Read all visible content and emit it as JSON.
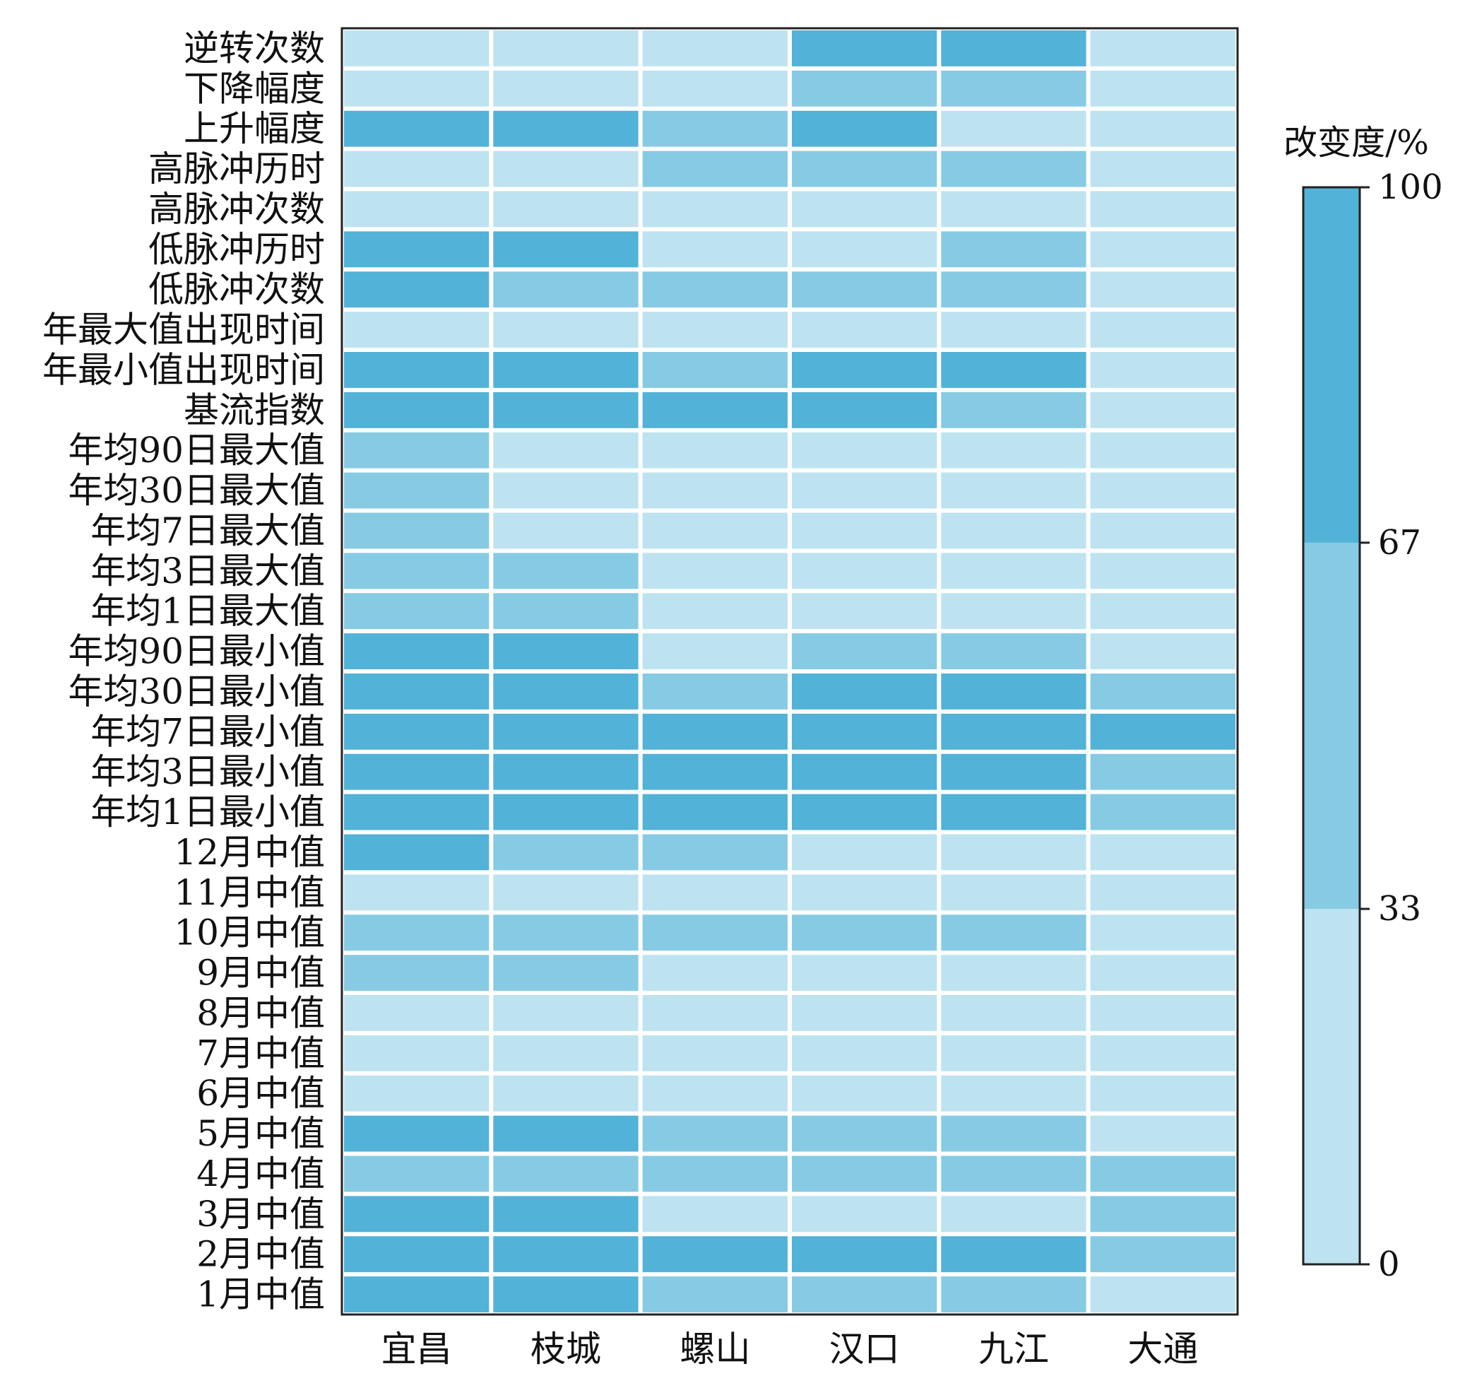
{
  "chart_data": {
    "type": "heatmap",
    "rows": [
      "逆转次数",
      "下降幅度",
      "上升幅度",
      "高脉冲历时",
      "高脉冲次数",
      "低脉冲历时",
      "低脉冲次数",
      "年最大值出现时间",
      "年最小值出现时间",
      "基流指数",
      "年均90日最大值",
      "年均30日最大值",
      "年均7日最大值",
      "年均3日最大值",
      "年均1日最大值",
      "年均90日最小值",
      "年均30日最小值",
      "年均7日最小值",
      "年均3日最小值",
      "年均1日最小值",
      "12月中值",
      "11月中值",
      "10月中值",
      "9月中值",
      "8月中值",
      "7月中值",
      "6月中值",
      "5月中值",
      "4月中值",
      "3月中值",
      "2月中值",
      "1月中值"
    ],
    "columns": [
      "宜昌",
      "枝城",
      "螺山",
      "汉口",
      "九江",
      "大通"
    ],
    "levels": [
      [
        1,
        1,
        1,
        3,
        3,
        1
      ],
      [
        1,
        1,
        1,
        2,
        2,
        1
      ],
      [
        3,
        3,
        2,
        3,
        1,
        1
      ],
      [
        1,
        1,
        2,
        2,
        2,
        1
      ],
      [
        1,
        1,
        1,
        1,
        1,
        1
      ],
      [
        3,
        3,
        1,
        1,
        2,
        1
      ],
      [
        3,
        2,
        2,
        2,
        2,
        1
      ],
      [
        1,
        1,
        1,
        1,
        1,
        1
      ],
      [
        3,
        3,
        2,
        3,
        3,
        1
      ],
      [
        3,
        3,
        3,
        3,
        2,
        1
      ],
      [
        2,
        1,
        1,
        1,
        1,
        1
      ],
      [
        2,
        1,
        1,
        1,
        1,
        1
      ],
      [
        2,
        1,
        1,
        1,
        1,
        1
      ],
      [
        2,
        2,
        1,
        1,
        1,
        1
      ],
      [
        2,
        2,
        1,
        1,
        1,
        1
      ],
      [
        3,
        3,
        1,
        2,
        2,
        1
      ],
      [
        3,
        3,
        2,
        3,
        3,
        2
      ],
      [
        3,
        3,
        3,
        3,
        3,
        3
      ],
      [
        3,
        3,
        3,
        3,
        3,
        2
      ],
      [
        3,
        3,
        3,
        3,
        3,
        2
      ],
      [
        3,
        2,
        2,
        1,
        1,
        1
      ],
      [
        1,
        1,
        1,
        1,
        1,
        1
      ],
      [
        2,
        2,
        2,
        2,
        2,
        1
      ],
      [
        2,
        2,
        1,
        1,
        1,
        1
      ],
      [
        1,
        1,
        1,
        1,
        1,
        1
      ],
      [
        1,
        1,
        1,
        1,
        1,
        1
      ],
      [
        1,
        1,
        1,
        1,
        1,
        1
      ],
      [
        3,
        3,
        2,
        2,
        2,
        1
      ],
      [
        2,
        2,
        2,
        2,
        2,
        2
      ],
      [
        3,
        3,
        1,
        1,
        1,
        2
      ],
      [
        3,
        3,
        3,
        3,
        3,
        2
      ],
      [
        3,
        3,
        2,
        2,
        2,
        1
      ]
    ],
    "level_colors": {
      "1": "#bde3f0",
      "2": "#86cbe3",
      "3": "#52b2d7"
    },
    "colorbar": {
      "title": "改变度/%",
      "ticks": [
        "0",
        "33",
        "67",
        "100"
      ],
      "tick_values": [
        0,
        33,
        67,
        100
      ],
      "range": [
        0,
        100
      ],
      "bands": [
        {
          "from": 0,
          "to": 33,
          "level": 1
        },
        {
          "from": 33,
          "to": 67,
          "level": 2
        },
        {
          "from": 67,
          "to": 100,
          "level": 3
        }
      ]
    },
    "grid_line_color": "#ffffff",
    "frame_color": "#222222"
  }
}
